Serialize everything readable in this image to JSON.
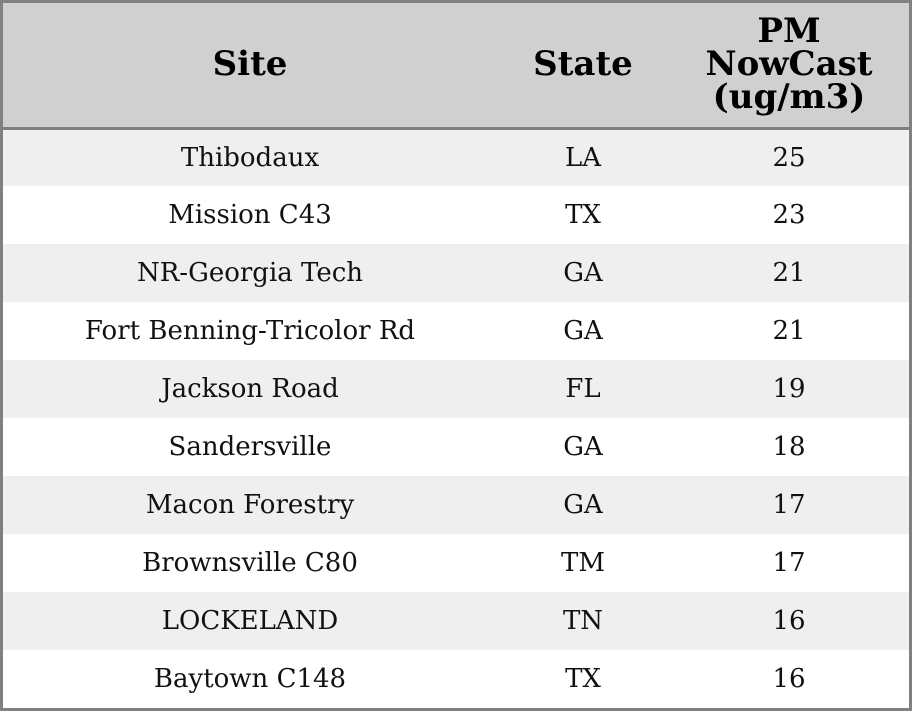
{
  "chart_data": {
    "type": "table",
    "columns": [
      "Site",
      "State",
      "PM\nNowCast\n(ug/m3)"
    ],
    "column_lines": [
      [
        "Site"
      ],
      [
        "State"
      ],
      [
        "PM",
        "NowCast",
        "(ug/m3)"
      ]
    ],
    "rows": [
      [
        "Thibodaux",
        "LA",
        "25"
      ],
      [
        "Mission C43",
        "TX",
        "23"
      ],
      [
        "NR-Georgia Tech",
        "GA",
        "21"
      ],
      [
        "Fort Benning-Tricolor Rd",
        "GA",
        "21"
      ],
      [
        "Jackson Road",
        "FL",
        "19"
      ],
      [
        "Sandersville",
        "GA",
        "18"
      ],
      [
        "Macon Forestry",
        "GA",
        "17"
      ],
      [
        "Brownsville C80",
        "TM",
        "17"
      ],
      [
        "LOCKELAND",
        "TN",
        "16"
      ],
      [
        "Baytown C148",
        "TX",
        "16"
      ]
    ]
  },
  "colors": {
    "header_background": "#d0d0d0",
    "stripe_background": "#efefef",
    "row_background": "#ffffff",
    "border": "#808080"
  }
}
